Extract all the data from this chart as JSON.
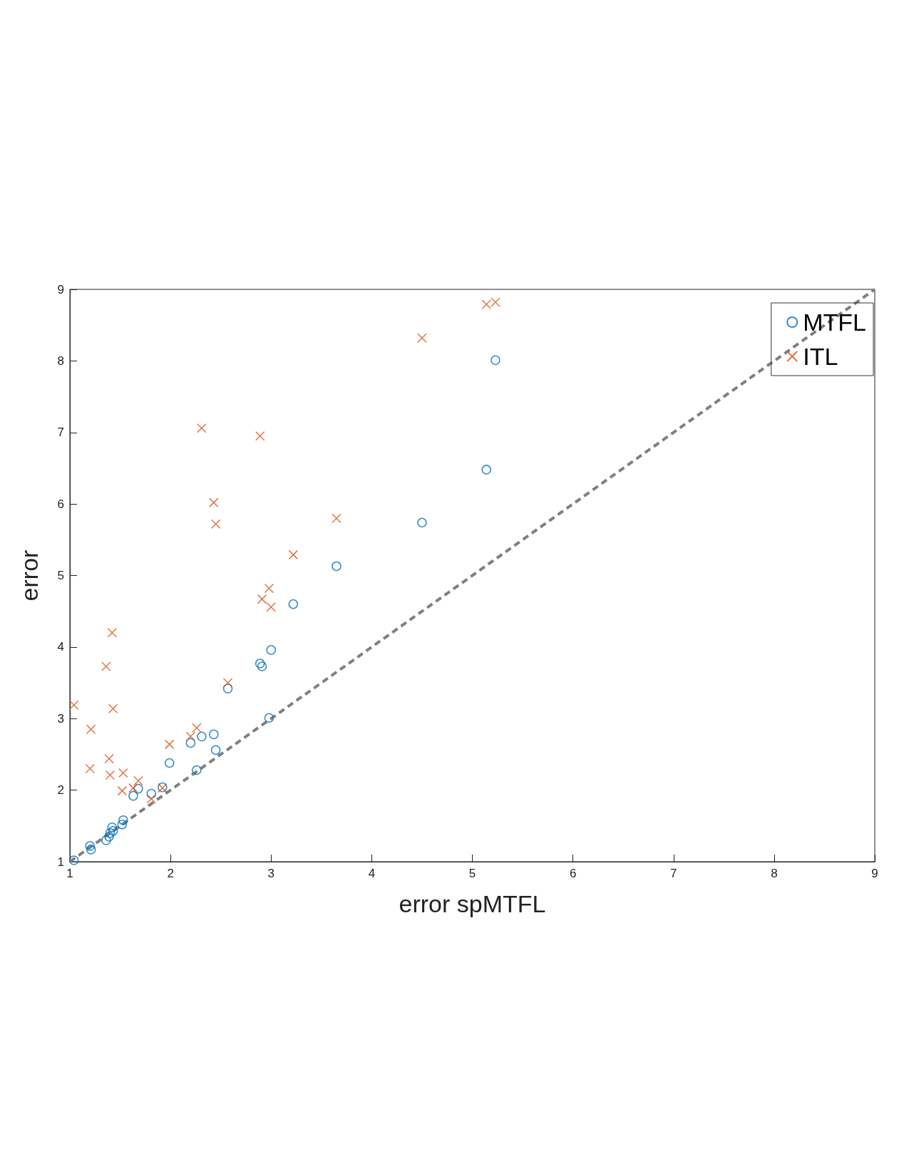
{
  "chart_data": {
    "type": "scatter",
    "xlabel": "error spMTFL",
    "ylabel": "error",
    "xlim": [
      1,
      9
    ],
    "ylim": [
      1,
      9
    ],
    "xticks": [
      1,
      2,
      3,
      4,
      5,
      6,
      7,
      8,
      9
    ],
    "yticks": [
      1,
      2,
      3,
      4,
      5,
      6,
      7,
      8,
      9
    ],
    "grid": false,
    "legend": "top right",
    "x": [
      1.04,
      1.2,
      1.21,
      1.36,
      1.39,
      1.4,
      1.42,
      1.43,
      1.52,
      1.53,
      1.63,
      1.68,
      1.81,
      1.92,
      1.99,
      2.2,
      2.26,
      2.31,
      2.43,
      2.45,
      2.57,
      2.89,
      2.91,
      2.98,
      3.0,
      3.22,
      3.65,
      4.5,
      5.14,
      5.23
    ],
    "series": [
      {
        "name": "MTFL",
        "color": "#0072bd",
        "marker": "circle",
        "values": [
          1.02,
          1.22,
          1.17,
          1.3,
          1.35,
          1.4,
          1.48,
          1.43,
          1.52,
          1.58,
          1.92,
          2.02,
          1.95,
          2.04,
          2.38,
          2.66,
          2.28,
          2.75,
          2.78,
          2.56,
          3.42,
          3.77,
          3.73,
          3.01,
          3.96,
          4.6,
          5.13,
          5.74,
          6.48,
          8.01
        ]
      },
      {
        "name": "ITL",
        "color": "#d95319",
        "marker": "cross",
        "values": [
          3.19,
          2.3,
          2.85,
          3.73,
          2.44,
          2.21,
          4.2,
          3.14,
          1.99,
          2.24,
          2.03,
          2.13,
          1.88,
          2.03,
          2.64,
          2.75,
          2.87,
          7.06,
          6.02,
          5.72,
          3.5,
          6.95,
          4.67,
          4.82,
          4.56,
          5.29,
          5.8,
          8.32,
          8.79,
          8.82
        ]
      },
      {
        "type": "line",
        "color": "#808080",
        "line_style": "dashed",
        "marker": "none",
        "x": [
          1,
          9
        ],
        "values": [
          1,
          9
        ]
      }
    ]
  }
}
